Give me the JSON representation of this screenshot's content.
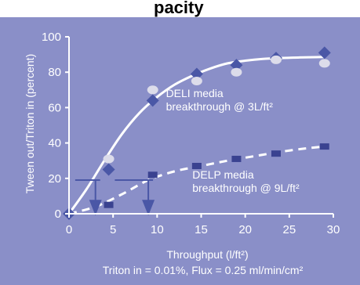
{
  "title_fragment": "pacity",
  "chart_data": {
    "type": "line",
    "title": "",
    "xlabel": "Throughput (l/ft²)",
    "subtitle": "Triton in = 0.01%, Flux = 0.25 ml/min/cm²",
    "ylabel": "Tween out/Triton in (percent)",
    "xlim": [
      0,
      30
    ],
    "ylim": [
      0,
      100
    ],
    "x_ticks": [
      0,
      5,
      10,
      15,
      20,
      25,
      30
    ],
    "y_ticks": [
      0,
      20,
      40,
      60,
      80,
      100
    ],
    "grid": false,
    "series": [
      {
        "marker": "diamond",
        "color": "#4a57a6",
        "x": [
          0,
          4.5,
          9.5,
          14.5,
          19,
          23.5,
          29
        ],
        "y": [
          0,
          25,
          64,
          79,
          84,
          88,
          91
        ]
      },
      {
        "marker": "ellipse",
        "color": "#dcdcea",
        "x": [
          4.5,
          9.5,
          14.5,
          19,
          23.5,
          29
        ],
        "y": [
          31,
          70,
          75,
          80,
          87,
          85
        ]
      },
      {
        "marker": "square",
        "color": "#3a4290",
        "x": [
          4.5,
          9.5,
          14.5,
          19,
          23.5,
          29
        ],
        "y": [
          5,
          22,
          27,
          31,
          34,
          38
        ]
      }
    ],
    "curves": [
      {
        "style": "solid",
        "x": [
          0,
          2,
          4,
          6,
          8,
          10,
          12,
          14,
          16,
          18,
          20,
          22,
          24,
          26,
          28,
          29
        ],
        "y": [
          0,
          14,
          30,
          45,
          57,
          66,
          73,
          78,
          82,
          85,
          86.5,
          87.5,
          88,
          88.3,
          88.5,
          88.6
        ]
      },
      {
        "style": "dashed",
        "x": [
          0,
          3,
          6,
          9,
          12,
          15,
          18,
          21,
          24,
          27,
          29
        ],
        "y": [
          0,
          4,
          11,
          19,
          24,
          27,
          30,
          32.5,
          35,
          37,
          38
        ]
      }
    ],
    "breakthrough_markers": [
      {
        "x": 3,
        "y": 19,
        "bar_start_x": 0.7
      },
      {
        "x": 9,
        "y": 19,
        "bar_start_x": 5.2
      }
    ],
    "annotations": [
      {
        "lines": [
          "DELI media",
          "breakthrough @ 3L/ft²"
        ],
        "x": 11,
        "y": 66
      },
      {
        "lines": [
          "DELP media",
          "breakthrough @ 9L/ft²"
        ],
        "x": 14,
        "y": 20
      }
    ],
    "colors": {
      "background": "#8a8fc8",
      "axis": "#ffffff",
      "curve": "#ffffff",
      "arrow": "#4a57a6"
    }
  }
}
